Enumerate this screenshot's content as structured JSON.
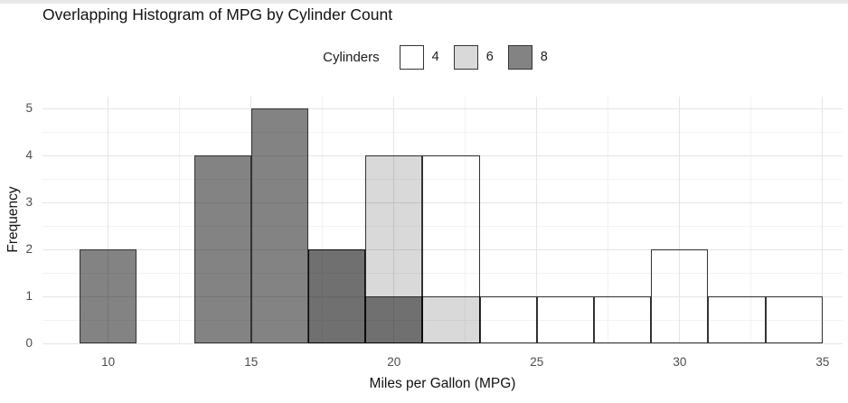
{
  "chart_data": {
    "type": "histogram",
    "title": "Overlapping Histogram of MPG by Cylinder Count",
    "xlabel": "Miles per Gallon (MPG)",
    "ylabel": "Frequency",
    "legend": {
      "title": "Cylinders",
      "position": "top-center",
      "entries": [
        {
          "label": "4",
          "fill": "#ffffff"
        },
        {
          "label": "6",
          "fill": "#d9d9d9"
        },
        {
          "label": "8",
          "fill": "#838383"
        }
      ]
    },
    "bins": {
      "width": 2,
      "edges": [
        9,
        11,
        13,
        15,
        17,
        19,
        21,
        23,
        25,
        27,
        29,
        31,
        33,
        35
      ]
    },
    "series": [
      {
        "name": "4",
        "fill": "#ffffff",
        "counts": [
          0,
          0,
          0,
          0,
          0,
          0,
          4,
          1,
          1,
          1,
          2,
          1,
          1
        ]
      },
      {
        "name": "6",
        "fill": "#d9d9d9",
        "counts": [
          0,
          0,
          0,
          0,
          2,
          4,
          1,
          0,
          0,
          0,
          0,
          0,
          0
        ]
      },
      {
        "name": "8",
        "fill": "#838383",
        "counts": [
          2,
          0,
          4,
          5,
          2,
          1,
          0,
          0,
          0,
          0,
          0,
          0,
          0
        ]
      }
    ],
    "overlay_note": "series drawn overlapping (not stacked) in order 4, 6, 8; semi-transparent fills make 8-over-6 overlap regions appear #6f6f6f",
    "axes": {
      "x_ticks": [
        10,
        15,
        20,
        25,
        30,
        35
      ],
      "y_ticks": [
        0,
        1,
        2,
        3,
        4,
        5
      ],
      "x_minor": [
        7.5,
        12.5,
        17.5,
        22.5,
        27.5,
        32.5
      ],
      "y_minor": [
        0.5,
        1.5,
        2.5,
        3.5,
        4.5
      ],
      "xlim": [
        7.7,
        35.7
      ],
      "ylim": [
        0,
        5.25
      ],
      "grid": true
    },
    "colors": {
      "bar_border": "#333333",
      "grid_major": "#e4e4e4",
      "grid_minor": "#f2f2f2",
      "tick_label": "#4d4d4d",
      "text": "#111111",
      "background": "#ffffff",
      "overlap_8_over_6": "#6f6f6f"
    }
  }
}
